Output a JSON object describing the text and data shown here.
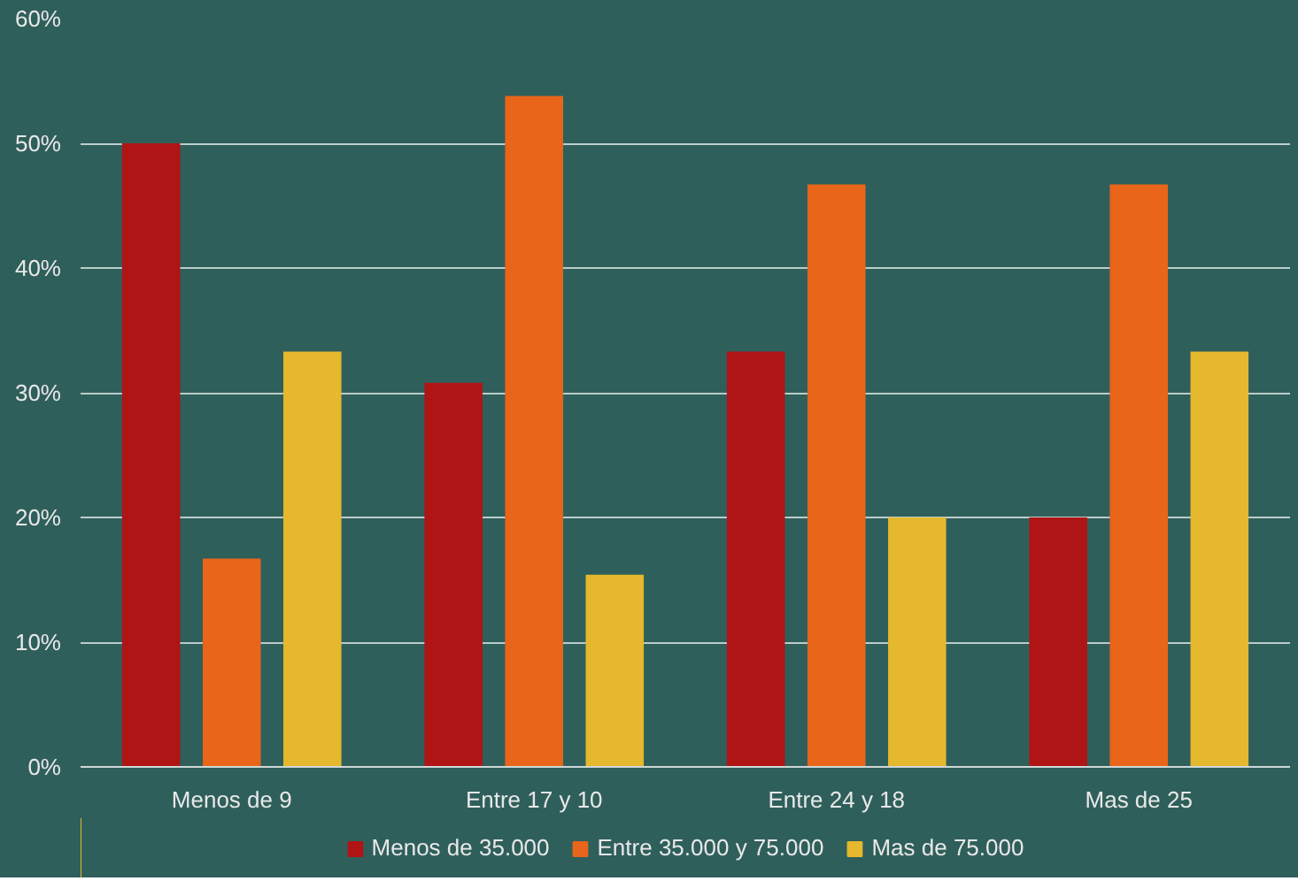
{
  "chart_data": {
    "type": "bar",
    "categories": [
      "Menos de 9",
      "Entre 17 y 10",
      "Entre 24 y 18",
      "Mas de 25"
    ],
    "series": [
      {
        "name": "Menos de 35.000",
        "color": "#b01516",
        "values": [
          50,
          30.8,
          33.3,
          20
        ]
      },
      {
        "name": "Entre 35.000 y 75.000",
        "color": "#e8651a",
        "values": [
          16.7,
          53.8,
          46.7,
          46.7
        ]
      },
      {
        "name": "Mas de 75.000",
        "color": "#e6b82e",
        "values": [
          33.3,
          15.4,
          20,
          33.3
        ]
      }
    ],
    "ylim": [
      0,
      60
    ],
    "yticks": [
      {
        "value": 0,
        "label": "0%"
      },
      {
        "value": 10,
        "label": "10%"
      },
      {
        "value": 20,
        "label": "20%"
      },
      {
        "value": 30,
        "label": "30%"
      },
      {
        "value": 40,
        "label": "40%"
      },
      {
        "value": 50,
        "label": "50%"
      },
      {
        "value": 60,
        "label": "60%"
      }
    ],
    "grid": "y",
    "legend": "bottom"
  }
}
